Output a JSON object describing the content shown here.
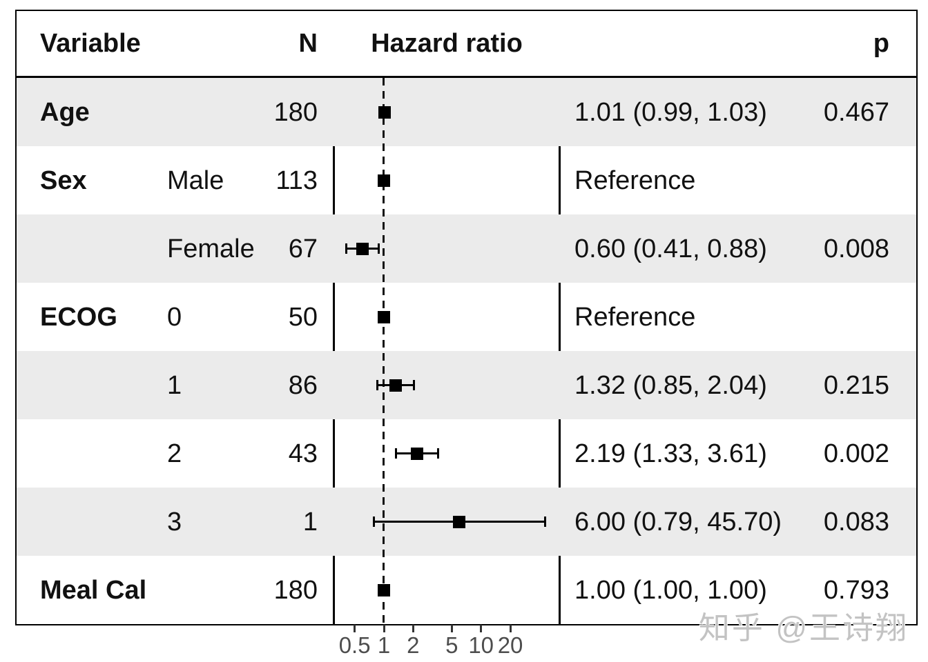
{
  "header": {
    "variable": "Variable",
    "n": "N",
    "hazard_ratio": "Hazard ratio",
    "p": "p"
  },
  "table": {
    "rows": [
      {
        "variable": "Age",
        "level": "",
        "n": "180",
        "estimate": "1.01 (0.99, 1.03)",
        "p": "0.467"
      },
      {
        "variable": "Sex",
        "level": "Male",
        "n": "113",
        "estimate": "Reference",
        "p": ""
      },
      {
        "variable": "",
        "level": "Female",
        "n": "67",
        "estimate": "0.60 (0.41, 0.88)",
        "p": "0.008"
      },
      {
        "variable": "ECOG",
        "level": "0",
        "n": "50",
        "estimate": "Reference",
        "p": ""
      },
      {
        "variable": "",
        "level": "1",
        "n": "86",
        "estimate": "1.32 (0.85, 2.04)",
        "p": "0.215"
      },
      {
        "variable": "",
        "level": "2",
        "n": "43",
        "estimate": "2.19 (1.33, 3.61)",
        "p": "0.002"
      },
      {
        "variable": "",
        "level": "3",
        "n": "1",
        "estimate": "6.00 (0.79, 45.70)",
        "p": "0.083"
      },
      {
        "variable": "Meal Cal",
        "level": "",
        "n": "180",
        "estimate": "1.00 (1.00, 1.00)",
        "p": "0.793"
      }
    ]
  },
  "watermark": {
    "text": "知乎 @王诗翔"
  },
  "colors": {
    "stripe": "#ebebeb",
    "border": "#000000",
    "marker": "#000000",
    "axis_text": "#4d4d4d",
    "watermark": "#c3c3c3"
  },
  "chart_data": {
    "type": "scatter",
    "variant": "forest",
    "title": "",
    "xlabel": "Hazard ratio",
    "scale": "log10",
    "x_ticks": [
      0.5,
      1,
      2,
      5,
      10,
      20
    ],
    "x_range": [
      0.3,
      60
    ],
    "reference_line": 1.0,
    "grid": false,
    "rows": [
      {
        "label": "Age",
        "n": 180,
        "hr": 1.01,
        "ci_low": 0.99,
        "ci_high": 1.03,
        "p": 0.467,
        "reference": false
      },
      {
        "label": "Sex Male",
        "n": 113,
        "hr": 1.0,
        "ci_low": 1.0,
        "ci_high": 1.0,
        "p": null,
        "reference": true
      },
      {
        "label": "Sex Female",
        "n": 67,
        "hr": 0.6,
        "ci_low": 0.41,
        "ci_high": 0.88,
        "p": 0.008,
        "reference": false
      },
      {
        "label": "ECOG 0",
        "n": 50,
        "hr": 1.0,
        "ci_low": 1.0,
        "ci_high": 1.0,
        "p": null,
        "reference": true
      },
      {
        "label": "ECOG 1",
        "n": 86,
        "hr": 1.32,
        "ci_low": 0.85,
        "ci_high": 2.04,
        "p": 0.215,
        "reference": false
      },
      {
        "label": "ECOG 2",
        "n": 43,
        "hr": 2.19,
        "ci_low": 1.33,
        "ci_high": 3.61,
        "p": 0.002,
        "reference": false
      },
      {
        "label": "ECOG 3",
        "n": 1,
        "hr": 6.0,
        "ci_low": 0.79,
        "ci_high": 45.7,
        "p": 0.083,
        "reference": false
      },
      {
        "label": "Meal Cal",
        "n": 180,
        "hr": 1.0,
        "ci_low": 1.0,
        "ci_high": 1.0,
        "p": 0.793,
        "reference": false
      }
    ]
  }
}
